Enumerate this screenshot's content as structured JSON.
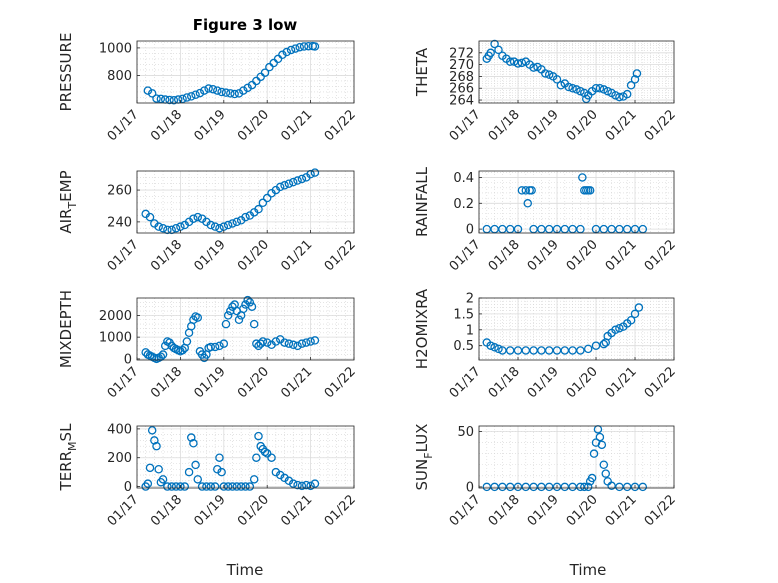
{
  "figure": {
    "title": "Figure 3 low",
    "marker_color": "#0072BD"
  },
  "x_axis": {
    "label": "Time",
    "ticks": [
      "01/17",
      "01/18",
      "01/19",
      "01/20",
      "01/21",
      "01/22"
    ],
    "tick_values": [
      17,
      18,
      19,
      20,
      21,
      22
    ],
    "range": [
      17,
      22
    ]
  },
  "chart_data": [
    {
      "type": "scatter",
      "ylabel": "PRESSURE",
      "ylim": [
        600,
        1050
      ],
      "yticks": [
        800,
        1000
      ],
      "grid": true,
      "x": [
        17.25,
        17.35,
        17.45,
        17.55,
        17.65,
        17.75,
        17.85,
        17.95,
        18.05,
        18.15,
        18.25,
        18.35,
        18.45,
        18.55,
        18.65,
        18.75,
        18.85,
        18.95,
        19.05,
        19.15,
        19.25,
        19.35,
        19.45,
        19.55,
        19.65,
        19.75,
        19.85,
        19.95,
        20.05,
        20.15,
        20.25,
        20.35,
        20.45,
        20.55,
        20.65,
        20.75,
        20.85,
        20.95,
        21.05,
        21.1
      ],
      "y": [
        690,
        670,
        632,
        630,
        625,
        622,
        620,
        625,
        630,
        640,
        648,
        660,
        672,
        690,
        705,
        700,
        690,
        680,
        675,
        670,
        665,
        670,
        690,
        710,
        730,
        760,
        790,
        820,
        860,
        890,
        920,
        950,
        970,
        985,
        995,
        1005,
        1010,
        1012,
        1013,
        1010
      ]
    },
    {
      "type": "scatter",
      "ylabel": "THETA",
      "ylim": [
        263.5,
        274
      ],
      "yticks": [
        264,
        266,
        268,
        270,
        272
      ],
      "grid": true,
      "x": [
        17.2,
        17.25,
        17.3,
        17.4,
        17.5,
        17.6,
        17.7,
        17.8,
        17.9,
        18.0,
        18.1,
        18.2,
        18.3,
        18.4,
        18.5,
        18.6,
        18.7,
        18.8,
        18.9,
        19.0,
        19.1,
        19.2,
        19.3,
        19.4,
        19.5,
        19.6,
        19.7,
        19.75,
        19.8,
        19.9,
        20.0,
        20.1,
        20.2,
        20.3,
        20.4,
        20.5,
        20.6,
        20.7,
        20.8,
        20.9,
        21.0,
        21.05
      ],
      "y": [
        271,
        271.5,
        272,
        273.5,
        272.5,
        271.5,
        271,
        270.5,
        270.5,
        270.2,
        270.3,
        270.5,
        270,
        269.5,
        269.6,
        269.2,
        268.5,
        268.3,
        268,
        267.5,
        266.5,
        266.8,
        266.2,
        266,
        265.8,
        265.5,
        265.2,
        264.2,
        264.8,
        265.5,
        266,
        266,
        265.8,
        265.5,
        265.2,
        264.8,
        264.5,
        264.6,
        265,
        266.5,
        267.5,
        268.5
      ]
    },
    {
      "type": "scatter",
      "ylabel": "AIR_TEMP",
      "ylim": [
        233,
        272
      ],
      "yticks": [
        240,
        260
      ],
      "grid": true,
      "x": [
        17.2,
        17.3,
        17.4,
        17.5,
        17.6,
        17.7,
        17.8,
        17.9,
        18.0,
        18.1,
        18.2,
        18.3,
        18.4,
        18.5,
        18.6,
        18.7,
        18.8,
        18.9,
        19.0,
        19.1,
        19.2,
        19.3,
        19.4,
        19.5,
        19.6,
        19.7,
        19.8,
        19.9,
        20.0,
        20.1,
        20.2,
        20.3,
        20.4,
        20.5,
        20.6,
        20.7,
        20.8,
        20.9,
        21.0,
        21.1
      ],
      "y": [
        245,
        243,
        239,
        237,
        236,
        235,
        235,
        236,
        237,
        238,
        240,
        242,
        243,
        242,
        240,
        238,
        237,
        236,
        237,
        238,
        239,
        240,
        241,
        243,
        244,
        246,
        248,
        252,
        255,
        258,
        260,
        262,
        263,
        264,
        265,
        266,
        267,
        268,
        270,
        271
      ]
    },
    {
      "type": "scatter",
      "ylabel": "RAINFALL",
      "ylim": [
        -0.03,
        0.45
      ],
      "yticks": [
        0,
        0.2,
        0.4
      ],
      "grid": true,
      "x": [
        17.2,
        17.4,
        17.6,
        17.8,
        18.0,
        18.1,
        18.2,
        18.25,
        18.3,
        18.35,
        18.4,
        18.6,
        18.8,
        19.0,
        19.2,
        19.4,
        19.6,
        19.65,
        19.7,
        19.75,
        19.8,
        19.85,
        20.0,
        20.2,
        20.4,
        20.6,
        20.8,
        21.0,
        21.2
      ],
      "y": [
        0,
        0,
        0,
        0,
        0,
        0.3,
        0.3,
        0.2,
        0.3,
        0.3,
        0,
        0,
        0,
        0,
        0,
        0,
        0,
        0.4,
        0.3,
        0.3,
        0.3,
        0.3,
        0,
        0,
        0,
        0,
        0,
        0,
        0
      ]
    },
    {
      "type": "scatter",
      "ylabel": "MIXDEPTH",
      "ylim": [
        -50,
        2800
      ],
      "yticks": [
        0,
        1000,
        2000
      ],
      "grid": true,
      "x": [
        17.2,
        17.25,
        17.3,
        17.35,
        17.4,
        17.45,
        17.5,
        17.55,
        17.6,
        17.65,
        17.7,
        17.75,
        17.8,
        17.85,
        17.9,
        17.95,
        18.0,
        18.05,
        18.1,
        18.15,
        18.2,
        18.25,
        18.3,
        18.35,
        18.4,
        18.45,
        18.5,
        18.55,
        18.6,
        18.65,
        18.7,
        18.8,
        18.9,
        19.0,
        19.05,
        19.1,
        19.15,
        19.2,
        19.25,
        19.3,
        19.35,
        19.4,
        19.45,
        19.5,
        19.55,
        19.6,
        19.65,
        19.7,
        19.75,
        19.8,
        19.85,
        19.9,
        20.0,
        20.1,
        20.2,
        20.3,
        20.4,
        20.5,
        20.6,
        20.7,
        20.8,
        20.9,
        21.0,
        21.1
      ],
      "y": [
        300,
        200,
        150,
        100,
        50,
        0,
        50,
        100,
        200,
        600,
        800,
        750,
        600,
        500,
        450,
        400,
        350,
        400,
        500,
        800,
        1200,
        1500,
        1800,
        1950,
        1900,
        350,
        200,
        50,
        200,
        500,
        550,
        550,
        600,
        700,
        1600,
        2000,
        2200,
        2400,
        2500,
        2200,
        1800,
        2000,
        2300,
        2500,
        2700,
        2600,
        2400,
        1600,
        700,
        600,
        700,
        800,
        750,
        650,
        800,
        900,
        750,
        700,
        650,
        600,
        700,
        750,
        800,
        850
      ]
    },
    {
      "type": "scatter",
      "ylabel": "H2OMIXRA",
      "ylim": [
        0.05,
        2.0
      ],
      "yticks": [
        0.5,
        1,
        1.5,
        2
      ],
      "grid": true,
      "x": [
        17.2,
        17.3,
        17.4,
        17.5,
        17.6,
        17.8,
        18.0,
        18.2,
        18.4,
        18.6,
        18.8,
        19.0,
        19.2,
        19.4,
        19.6,
        19.8,
        20.0,
        20.2,
        20.25,
        20.3,
        20.4,
        20.5,
        20.6,
        20.7,
        20.8,
        20.9,
        21.0,
        21.1
      ],
      "y": [
        0.6,
        0.5,
        0.45,
        0.4,
        0.35,
        0.35,
        0.35,
        0.35,
        0.35,
        0.35,
        0.35,
        0.35,
        0.35,
        0.35,
        0.35,
        0.4,
        0.5,
        0.55,
        0.6,
        0.8,
        0.9,
        1.0,
        1.05,
        1.1,
        1.2,
        1.3,
        1.5,
        1.7
      ]
    },
    {
      "type": "scatter",
      "ylabel": "TERR_MSL",
      "ylim": [
        -10,
        420
      ],
      "yticks": [
        0,
        200,
        400
      ],
      "grid": true,
      "x": [
        17.2,
        17.25,
        17.3,
        17.35,
        17.4,
        17.45,
        17.5,
        17.55,
        17.6,
        17.7,
        17.8,
        17.9,
        18.0,
        18.1,
        18.2,
        18.25,
        18.3,
        18.35,
        18.4,
        18.5,
        18.6,
        18.7,
        18.8,
        18.85,
        18.9,
        18.95,
        19.0,
        19.1,
        19.2,
        19.3,
        19.4,
        19.5,
        19.6,
        19.7,
        19.75,
        19.8,
        19.85,
        19.9,
        19.95,
        20.0,
        20.1,
        20.2,
        20.3,
        20.4,
        20.5,
        20.6,
        20.7,
        20.8,
        20.9,
        21.0,
        21.1
      ],
      "y": [
        0,
        20,
        130,
        390,
        320,
        280,
        120,
        30,
        50,
        0,
        0,
        0,
        0,
        0,
        100,
        340,
        300,
        150,
        50,
        0,
        0,
        0,
        0,
        120,
        200,
        100,
        0,
        0,
        0,
        0,
        0,
        0,
        0,
        50,
        200,
        350,
        280,
        260,
        240,
        230,
        200,
        100,
        80,
        60,
        40,
        20,
        10,
        5,
        10,
        5,
        20
      ]
    },
    {
      "type": "scatter",
      "ylabel": "SUN_FLUX",
      "ylim": [
        -1,
        55
      ],
      "yticks": [
        0,
        50
      ],
      "grid": true,
      "x": [
        17.2,
        17.4,
        17.6,
        17.8,
        18.0,
        18.2,
        18.4,
        18.6,
        18.8,
        19.0,
        19.2,
        19.4,
        19.6,
        19.7,
        19.8,
        19.85,
        19.9,
        19.95,
        20.0,
        20.05,
        20.1,
        20.15,
        20.2,
        20.25,
        20.3,
        20.4,
        20.6,
        20.8,
        21.0,
        21.2
      ],
      "y": [
        0,
        0,
        0,
        0,
        0,
        0,
        0,
        0,
        0,
        0,
        0,
        0,
        0,
        0,
        0,
        5,
        8,
        30,
        40,
        52,
        45,
        38,
        20,
        12,
        5,
        1,
        0,
        0,
        0,
        0
      ]
    }
  ]
}
